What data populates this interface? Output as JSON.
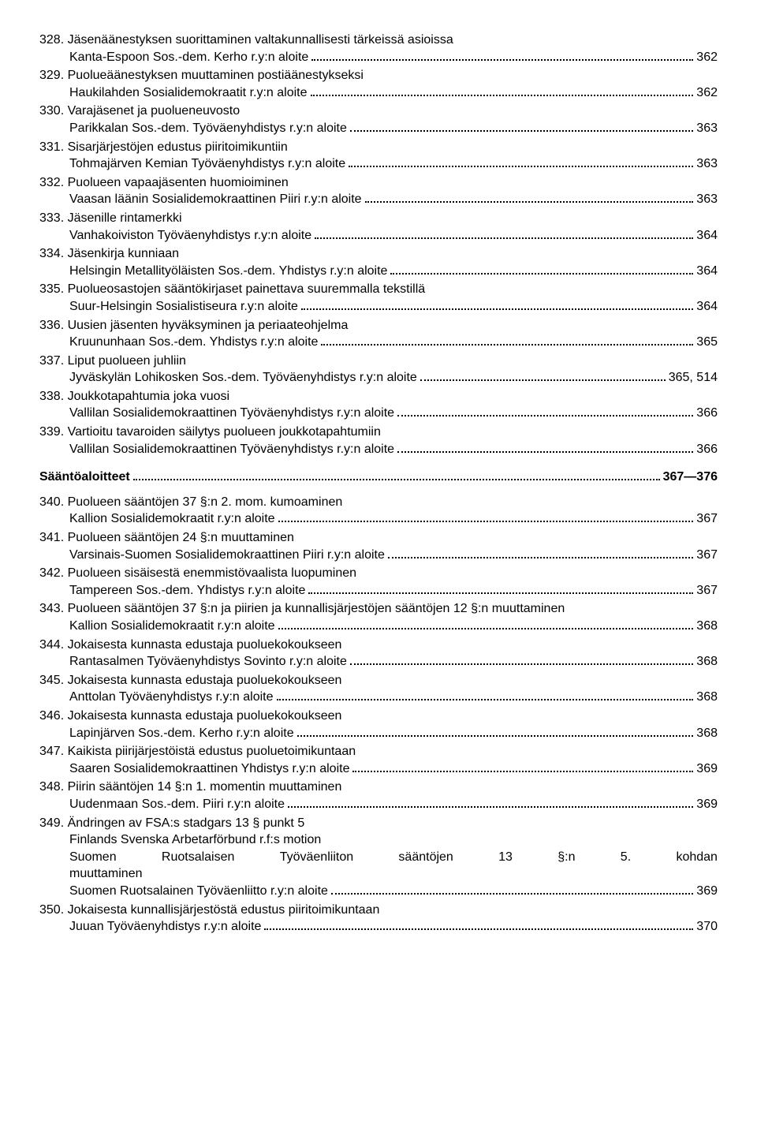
{
  "entries1": [
    {
      "num": "328.",
      "title": "Jäsenäänestyksen suorittaminen valtakunnallisesti tärkeissä asioissa",
      "sub": "Kanta-Espoon Sos.-dem. Kerho r.y:n aloite",
      "page": "362"
    },
    {
      "num": "329.",
      "title": "Puolueäänestyksen muuttaminen postiäänestykseksi",
      "sub": "Haukilahden Sosialidemokraatit r.y:n aloite",
      "page": "362"
    },
    {
      "num": "330.",
      "title": "Varajäsenet ja puolueneuvosto",
      "sub": "Parikkalan Sos.-dem. Työväenyhdistys r.y:n aloite",
      "page": "363"
    },
    {
      "num": "331.",
      "title": "Sisarjärjestöjen edustus piiritoimikuntiin",
      "sub": "Tohmajärven Kemian Työväenyhdistys r.y:n aloite",
      "page": "363"
    },
    {
      "num": "332.",
      "title": "Puolueen vapaajäsenten huomioiminen",
      "sub": "Vaasan läänin Sosialidemokraattinen Piiri r.y:n aloite",
      "page": "363"
    },
    {
      "num": "333.",
      "title": "Jäsenille rintamerkki",
      "sub": "Vanhakoiviston Työväenyhdistys r.y:n aloite",
      "page": "364"
    },
    {
      "num": "334.",
      "title": "Jäsenkirja kunniaan",
      "sub": "Helsingin Metallityöläisten Sos.-dem. Yhdistys r.y:n aloite",
      "page": "364"
    },
    {
      "num": "335.",
      "title": "Puolueosastojen sääntökirjaset painettava suuremmalla tekstillä",
      "sub": "Suur-Helsingin Sosialistiseura r.y:n aloite",
      "page": "364"
    },
    {
      "num": "336.",
      "title": "Uusien jäsenten hyväksyminen ja periaateohjelma",
      "sub": "Kruununhaan Sos.-dem. Yhdistys r.y:n aloite",
      "page": "365"
    },
    {
      "num": "337.",
      "title": "Liput puolueen juhliin",
      "sub": "Jyväskylän Lohikosken Sos.-dem. Työväenyhdistys r.y:n aloite",
      "page": "365, 514"
    },
    {
      "num": "338.",
      "title": "Joukkotapahtumia joka vuosi",
      "sub": "Vallilan Sosialidemokraattinen Työväenyhdistys r.y:n aloite",
      "page": "366"
    },
    {
      "num": "339.",
      "title": "Vartioitu tavaroiden säilytys puolueen joukkotapahtumiin",
      "sub": "Vallilan Sosialidemokraattinen Työväenyhdistys r.y:n aloite",
      "page": "366"
    }
  ],
  "section": {
    "label": "Sääntöaloitteet",
    "page": "367—376"
  },
  "entries2": [
    {
      "num": "340.",
      "title": "Puolueen sääntöjen 37 §:n 2. mom. kumoaminen",
      "sub": "Kallion Sosialidemokraatit r.y:n aloite",
      "page": "367"
    },
    {
      "num": "341.",
      "title": "Puolueen sääntöjen 24 §:n muuttaminen",
      "sub": "Varsinais-Suomen Sosialidemokraattinen Piiri r.y:n aloite",
      "page": "367"
    },
    {
      "num": "342.",
      "title": "Puolueen sisäisestä enemmistövaalista luopuminen",
      "sub": "Tampereen Sos.-dem. Yhdistys r.y:n aloite",
      "page": "367"
    },
    {
      "num": "343.",
      "title": "Puolueen sääntöjen 37 §:n ja piirien ja kunnallisjärjestöjen sääntöjen 12 §:n muuttaminen",
      "sub": "Kallion Sosialidemokraatit r.y:n aloite",
      "page": "368",
      "titleMultiline": true
    },
    {
      "num": "344.",
      "title": "Jokaisesta kunnasta edustaja puoluekokoukseen",
      "sub": "Rantasalmen Työväenyhdistys Sovinto r.y:n aloite",
      "page": "368"
    },
    {
      "num": "345.",
      "title": "Jokaisesta kunnasta edustaja puoluekokoukseen",
      "sub": "Anttolan Työväenyhdistys r.y:n aloite",
      "page": "368"
    },
    {
      "num": "346.",
      "title": "Jokaisesta kunnasta edustaja puoluekokoukseen",
      "sub": "Lapinjärven Sos.-dem. Kerho r.y:n aloite",
      "page": "368"
    },
    {
      "num": "347.",
      "title": "Kaikista piirijärjestöistä edustus puoluetoimikuntaan",
      "sub": "Saaren Sosialidemokraattinen Yhdistys r.y:n aloite",
      "page": "369"
    },
    {
      "num": "348.",
      "title": "Piirin sääntöjen 14 §:n 1. momentin muuttaminen",
      "sub": "Uudenmaan Sos.-dem. Piiri r.y:n aloite",
      "page": "369"
    },
    {
      "num": "349.",
      "title": "Ändringen av FSA:s stadgars 13 § punkt 5",
      "extra1": "Finlands Svenska Arbetarförbund r.f:s motion",
      "extra2": "Suomen Ruotsalaisen Työväenliiton sääntöjen 13 §:n 5. kohdan muuttaminen",
      "sub": "Suomen Ruotsalainen Työväenliitto r.y:n aloite",
      "page": "369"
    },
    {
      "num": "350.",
      "title": "Jokaisesta kunnallisjärjestöstä edustus piiritoimikuntaan",
      "sub": "Juuan Työväenyhdistys r.y:n aloite",
      "page": "370"
    }
  ]
}
